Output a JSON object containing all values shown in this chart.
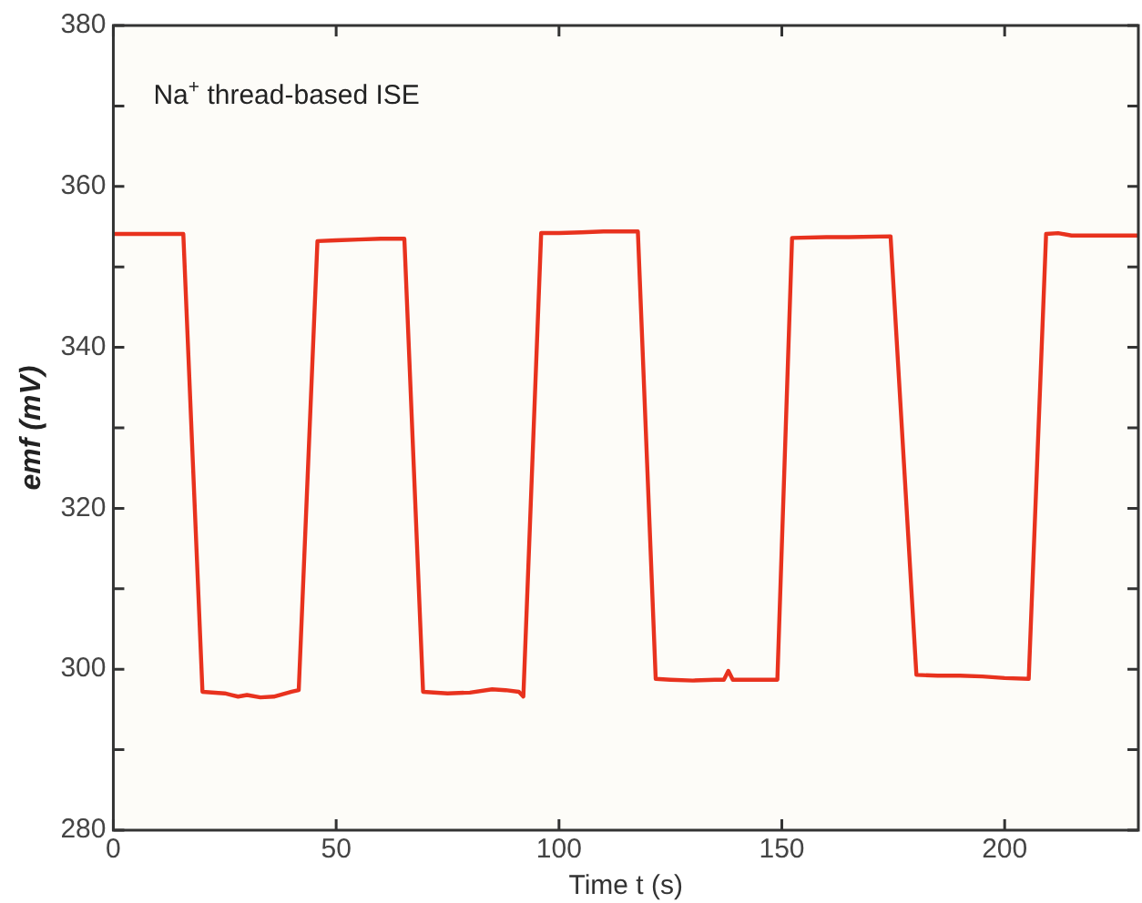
{
  "chart_data": {
    "type": "line",
    "xlabel": "Time t (s)",
    "ylabel": "emf (mV)",
    "annotations": [
      "Na$^{+}$ thread-based ISE"
    ],
    "xlim": [
      0,
      230
    ],
    "xticks": [
      0,
      50,
      100,
      150,
      200
    ],
    "ylim": [
      280,
      380
    ],
    "yticks": [
      280,
      {
        "value": 290,
        "label": null
      },
      300,
      {
        "value": 310,
        "label": null
      },
      320,
      {
        "value": 330,
        "label": null
      },
      340,
      {
        "value": 350,
        "label": null
      },
      360,
      {
        "value": 370,
        "label": null
      },
      380
    ],
    "grid": false,
    "legend": false,
    "marker": "none",
    "line_style": "solid",
    "series": [
      {
        "color": "#e8321e",
        "x": [
          0,
          5,
          10,
          15.7,
          20,
          25,
          28,
          30,
          33,
          36,
          40,
          41.6,
          45.8,
          50,
          55,
          60,
          65.3,
          69.5,
          75,
          80,
          85,
          88,
          91,
          92,
          96,
          100,
          105,
          110,
          117.7,
          121.7,
          125,
          130,
          135,
          137,
          138,
          139,
          142,
          149,
          152.3,
          160,
          165,
          174.4,
          180.2,
          185,
          190,
          195,
          200,
          205.4,
          209.3,
          212,
          215,
          220,
          230
        ],
        "values": [
          354.1,
          354.1,
          354.1,
          354.1,
          297.2,
          297,
          296.6,
          296.8,
          296.5,
          296.6,
          297.2,
          297.4,
          353.2,
          353.3,
          353.4,
          353.5,
          353.5,
          297.2,
          297,
          297.1,
          297.5,
          297.4,
          297.2,
          296.6,
          354.2,
          354.2,
          354.3,
          354.4,
          354.4,
          298.8,
          298.7,
          298.6,
          298.7,
          298.7,
          299.8,
          298.7,
          298.7,
          298.7,
          353.6,
          353.7,
          353.7,
          353.8,
          299.3,
          299.2,
          299.2,
          299.1,
          298.9,
          298.8,
          354.1,
          354.2,
          353.9,
          353.9,
          353.9
        ]
      }
    ]
  }
}
